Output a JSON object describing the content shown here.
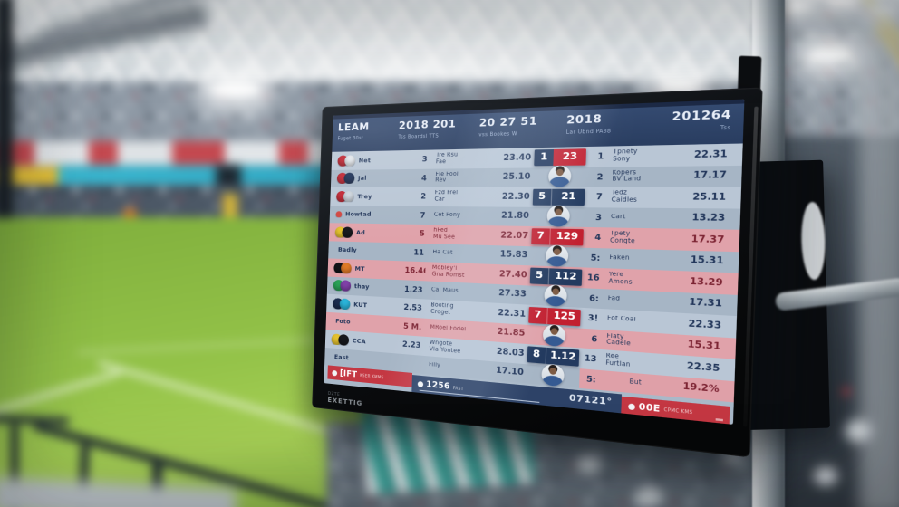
{
  "bezel": {
    "tag": "DZTE",
    "label": "EXETTIG"
  },
  "colors": {
    "accent_red": "#c22030",
    "badge_navy": "#233a5f",
    "header_navy": "#2f4469",
    "row_light": "#b9c6d5",
    "row_dark": "#a6b5c5",
    "row_pink": "#e0a2aa",
    "ticker_red": "#c43742",
    "ad_cyan": "#38b6cf",
    "ad_yellow": "#e3bf35",
    "pitch_green": "#93c248"
  },
  "screen": {
    "header": [
      {
        "title": "LEAM",
        "sub": "Fuget 30st"
      },
      {
        "title": "2018 201",
        "sub": "Tss Boardsl TTS"
      },
      {
        "title": "20 27 51",
        "sub": "vss  Bookes  W"
      },
      {
        "title": "2018",
        "sub": "Lar Ubnd PA88"
      },
      {
        "title": "201264",
        "sub": "Tss"
      }
    ],
    "rows": [
      {
        "logos": [
          "#c22431",
          "#e3e7ec"
        ],
        "name": "Net",
        "num": "3",
        "d1": "Tre Rsu",
        "d2": "Fae",
        "val": "23.40",
        "rank": "1",
        "r1": "Tpnety",
        "r2": "Sony",
        "rval": "22.31"
      },
      {
        "logos": [
          "#c22431",
          "#1d3056"
        ],
        "name": "Jal",
        "num": "4",
        "d1": "Fle Fool",
        "d2": "Rev",
        "val": "25.10",
        "rank": "2",
        "r1": "Kopers",
        "r2": "BV Land",
        "rval": "17.17"
      },
      {
        "logos": [
          "#c22431",
          "#cdd5dd"
        ],
        "name": "Trey",
        "num": "2",
        "d1": "Fzd Frel",
        "d2": "Car",
        "val": "22.30",
        "rank": "7",
        "r1": "Tedz",
        "r2": "Caidles",
        "rval": "25.11"
      },
      {
        "dot": true,
        "name": "Howtad",
        "num": "7",
        "d1": "Cet Pony",
        "d2": "",
        "val": "21.80",
        "rank": "3",
        "r1": "Cart",
        "r2": "",
        "rval": "13.23"
      },
      {
        "logos": [
          "#e5c22e",
          "#16181d"
        ],
        "name": "Ad",
        "num": "5",
        "d1": "hFed",
        "d2": "Mu See",
        "val": "22.07",
        "rank": "4",
        "r1": "Tpety",
        "r2": "Congte",
        "rval": "17.37",
        "pink": true
      },
      {
        "logos": [],
        "name": "Badly",
        "num": "11",
        "d1": "Ha Cat",
        "d2": "",
        "val": "15.83",
        "rank": "5:",
        "r1": "Faken",
        "r2": "",
        "rval": "15.31"
      },
      {
        "logos": [
          "#101318",
          "#df7a26"
        ],
        "name": "MT",
        "num": "16.46",
        "d1": "Mobley'l",
        "d2": "Gna Romst",
        "val": "27.40",
        "rank": "16",
        "r1": "Yere",
        "r2": "Amons",
        "rval": "13.29",
        "pink": true
      },
      {
        "logos": [
          "#2aa257",
          "#8040a8"
        ],
        "name": "thay",
        "num": "1.23",
        "d1": "Cai Maus",
        "d2": "",
        "val": "27.33",
        "rank": "6:",
        "r1": "Fad",
        "r2": "",
        "rval": "17.31"
      },
      {
        "logos": [
          "#1b2c4e",
          "#2ab4da"
        ],
        "name": "KUT",
        "num": "2.53",
        "d1": "Booting",
        "d2": "Croget",
        "val": "22.31",
        "rank": "3!",
        "r1": "Fot Coal",
        "r2": "",
        "rval": "22.33"
      },
      {
        "logos": [],
        "name": "Foto",
        "num": "5 M.",
        "d1": "MRoel Fodel",
        "d2": "",
        "val": "21.85",
        "rank": "6",
        "r1": "Flaty",
        "r2": "Cadele",
        "rval": "15.31",
        "pink": true
      },
      {
        "logos": [
          "#e5c22e",
          "#16181d"
        ],
        "name": "CCA",
        "num": "2.23",
        "d1": "Wngote",
        "d2": "Vla Yontee",
        "val": "28.03",
        "rank": "13",
        "r1": "Ree",
        "r2": "Furtlan",
        "rval": "22.35"
      },
      {
        "logos": [],
        "name": "East",
        "num": "",
        "d1": "Filly",
        "d2": "",
        "val": "17.10",
        "rank": "5:",
        "r1": "But",
        "r2": "",
        "rval": "19.2%",
        "pinkR": true
      }
    ],
    "stack": [
      {
        "kind": "split",
        "l": "1",
        "r": "23"
      },
      {
        "kind": "photo"
      },
      {
        "kind": "navy",
        "l": "5",
        "r": "21"
      },
      {
        "kind": "photo"
      },
      {
        "kind": "redb",
        "l": "7",
        "r": "129"
      },
      {
        "kind": "photo"
      },
      {
        "kind": "navy",
        "l": "5",
        "r": "112"
      },
      {
        "kind": "photo"
      },
      {
        "kind": "redb",
        "l": "7",
        "r": "125"
      },
      {
        "kind": "photo"
      },
      {
        "kind": "navy",
        "l": "8",
        "r": "1.12"
      },
      {
        "kind": "photo"
      }
    ],
    "footer": {
      "left": {
        "label": "[IFT",
        "sub": "KSER KMMS"
      },
      "mid": {
        "value": "1256",
        "sub": "FAST",
        "clock": "07121°"
      },
      "right": {
        "label": "00E",
        "sub": "CPMC KMS"
      }
    }
  }
}
